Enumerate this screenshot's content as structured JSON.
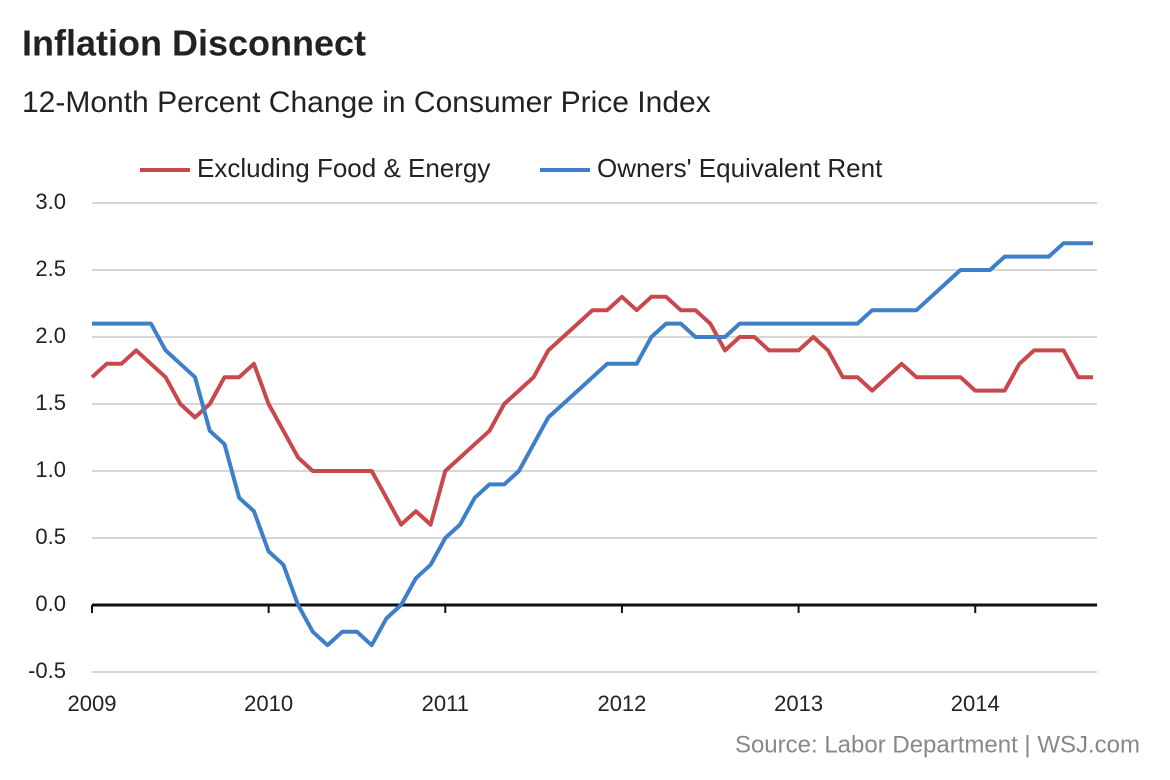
{
  "chart_data": {
    "type": "line",
    "title": "Inflation Disconnect",
    "subtitle": "12-Month Percent Change in Consumer Price Index",
    "source": "Source:  Labor Department  |  WSJ.com",
    "categories": [
      "2009",
      null,
      null,
      null,
      null,
      null,
      null,
      null,
      null,
      null,
      null,
      null,
      "2010",
      null,
      null,
      null,
      null,
      null,
      null,
      null,
      null,
      null,
      null,
      null,
      "2011",
      null,
      null,
      null,
      null,
      null,
      null,
      null,
      null,
      null,
      null,
      null,
      "2012",
      null,
      null,
      null,
      null,
      null,
      null,
      null,
      null,
      null,
      null,
      null,
      "2013",
      null,
      null,
      null,
      null,
      null,
      null,
      null,
      null,
      null,
      null,
      null,
      "2014",
      null,
      null,
      null,
      null,
      null,
      null,
      null,
      null
    ],
    "series": [
      {
        "name": "Excluding Food & Energy",
        "color": "#c8484b",
        "values": [
          1.7,
          1.8,
          1.8,
          1.9,
          1.8,
          1.7,
          1.5,
          1.4,
          1.5,
          1.7,
          1.7,
          1.8,
          1.5,
          1.3,
          1.1,
          1.0,
          1.0,
          1.0,
          1.0,
          1.0,
          0.8,
          0.6,
          0.7,
          0.6,
          1.0,
          1.1,
          1.2,
          1.3,
          1.5,
          1.6,
          1.7,
          1.9,
          2.0,
          2.1,
          2.2,
          2.2,
          2.3,
          2.2,
          2.3,
          2.3,
          2.2,
          2.2,
          2.1,
          1.9,
          2.0,
          2.0,
          1.9,
          1.9,
          1.9,
          2.0,
          1.9,
          1.7,
          1.7,
          1.6,
          1.7,
          1.8,
          1.7,
          1.7,
          1.7,
          1.7,
          1.6,
          1.6,
          1.6,
          1.8,
          1.9,
          1.9,
          1.9,
          1.7,
          1.7
        ]
      },
      {
        "name": "Owners' Equivalent Rent",
        "color": "#3d7fc9",
        "values": [
          2.1,
          2.1,
          2.1,
          2.1,
          2.1,
          1.9,
          1.8,
          1.7,
          1.3,
          1.2,
          0.8,
          0.7,
          0.4,
          0.3,
          0.0,
          -0.2,
          -0.3,
          -0.2,
          -0.2,
          -0.3,
          -0.1,
          0.0,
          0.2,
          0.3,
          0.5,
          0.6,
          0.8,
          0.9,
          0.9,
          1.0,
          1.2,
          1.4,
          1.5,
          1.6,
          1.7,
          1.8,
          1.8,
          1.8,
          2.0,
          2.1,
          2.1,
          2.0,
          2.0,
          2.0,
          2.1,
          2.1,
          2.1,
          2.1,
          2.1,
          2.1,
          2.1,
          2.1,
          2.1,
          2.2,
          2.2,
          2.2,
          2.2,
          2.3,
          2.4,
          2.5,
          2.5,
          2.5,
          2.6,
          2.6,
          2.6,
          2.6,
          2.7,
          2.7,
          2.7
        ]
      }
    ],
    "ylim": [
      -0.5,
      3.0
    ],
    "yticks": [
      {
        "value": 3.0,
        "label": "3.0"
      },
      2.5,
      {
        "value": 2.0,
        "label": "2.0"
      },
      1.5,
      {
        "value": 1.0,
        "label": "1.0"
      },
      0.5,
      {
        "value": 0.0,
        "label": "0.0"
      },
      -0.5
    ],
    "grid": true
  }
}
